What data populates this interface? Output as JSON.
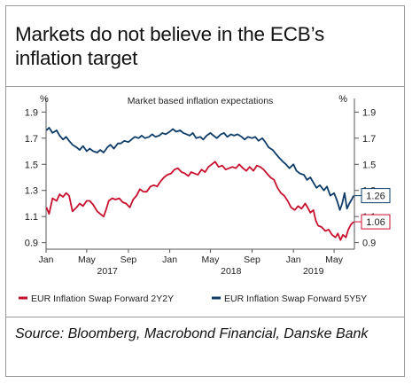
{
  "title_lines": [
    "Markets do not believe in the ECB’s",
    "inflation target"
  ],
  "source": "Source: Bloomberg, Macrobond Financial, Danske Bank",
  "chart_data": {
    "type": "line",
    "subtitle": "Market based inflation expectations",
    "left_unit": "%",
    "right_unit": "%",
    "ylim": [
      0.85,
      1.95
    ],
    "yticks": [
      0.9,
      1.1,
      1.3,
      1.5,
      1.7,
      1.9
    ],
    "ytick_labels": [
      "0.9",
      "1.1",
      "1.3",
      "1.5",
      "1.7",
      "1.9"
    ],
    "x_start": "2017-01-01",
    "x_end": "2019-06-30",
    "month_ticks": [
      {
        "date": "2017-01-01",
        "label": "Jan"
      },
      {
        "date": "2017-05-01",
        "label": "May"
      },
      {
        "date": "2017-09-01",
        "label": "Sep"
      },
      {
        "date": "2018-01-01",
        "label": "Jan"
      },
      {
        "date": "2018-05-01",
        "label": "May"
      },
      {
        "date": "2018-09-01",
        "label": "Sep"
      },
      {
        "date": "2019-01-01",
        "label": "Jan"
      },
      {
        "date": "2019-05-01",
        "label": "May"
      }
    ],
    "year_labels": [
      {
        "date": "2017-07-01",
        "label": "2017"
      },
      {
        "date": "2018-07-01",
        "label": "2018"
      },
      {
        "date": "2019-03-01",
        "label": "2019"
      }
    ],
    "series": [
      {
        "name": "EUR Inflation Swap Forward 2Y2Y",
        "color": "#c8102e",
        "end_label": "1.06",
        "points": [
          [
            "2017-01-02",
            1.17
          ],
          [
            "2017-01-10",
            1.12
          ],
          [
            "2017-01-20",
            1.24
          ],
          [
            "2017-02-01",
            1.22
          ],
          [
            "2017-02-10",
            1.27
          ],
          [
            "2017-02-20",
            1.25
          ],
          [
            "2017-03-01",
            1.28
          ],
          [
            "2017-03-10",
            1.26
          ],
          [
            "2017-03-20",
            1.14
          ],
          [
            "2017-04-01",
            1.17
          ],
          [
            "2017-04-10",
            1.2
          ],
          [
            "2017-04-20",
            1.18
          ],
          [
            "2017-05-01",
            1.22
          ],
          [
            "2017-05-10",
            1.22
          ],
          [
            "2017-05-20",
            1.19
          ],
          [
            "2017-06-01",
            1.14
          ],
          [
            "2017-06-10",
            1.12
          ],
          [
            "2017-06-20",
            1.1
          ],
          [
            "2017-06-28",
            1.16
          ],
          [
            "2017-07-05",
            1.22
          ],
          [
            "2017-07-15",
            1.24
          ],
          [
            "2017-07-25",
            1.23
          ],
          [
            "2017-08-05",
            1.24
          ],
          [
            "2017-08-15",
            1.21
          ],
          [
            "2017-08-25",
            1.2
          ],
          [
            "2017-09-05",
            1.17
          ],
          [
            "2017-09-15",
            1.23
          ],
          [
            "2017-09-25",
            1.26
          ],
          [
            "2017-10-05",
            1.31
          ],
          [
            "2017-10-15",
            1.29
          ],
          [
            "2017-10-25",
            1.29
          ],
          [
            "2017-11-05",
            1.33
          ],
          [
            "2017-11-15",
            1.34
          ],
          [
            "2017-11-25",
            1.33
          ],
          [
            "2017-12-05",
            1.37
          ],
          [
            "2017-12-15",
            1.4
          ],
          [
            "2017-12-25",
            1.42
          ],
          [
            "2018-01-05",
            1.43
          ],
          [
            "2018-01-15",
            1.46
          ],
          [
            "2018-01-25",
            1.47
          ],
          [
            "2018-02-05",
            1.44
          ],
          [
            "2018-02-15",
            1.43
          ],
          [
            "2018-02-25",
            1.41
          ],
          [
            "2018-03-05",
            1.44
          ],
          [
            "2018-03-15",
            1.43
          ],
          [
            "2018-03-25",
            1.42
          ],
          [
            "2018-04-05",
            1.46
          ],
          [
            "2018-04-15",
            1.44
          ],
          [
            "2018-04-25",
            1.48
          ],
          [
            "2018-05-05",
            1.5
          ],
          [
            "2018-05-15",
            1.52
          ],
          [
            "2018-05-25",
            1.48
          ],
          [
            "2018-06-05",
            1.49
          ],
          [
            "2018-06-15",
            1.46
          ],
          [
            "2018-06-25",
            1.47
          ],
          [
            "2018-07-05",
            1.48
          ],
          [
            "2018-07-15",
            1.47
          ],
          [
            "2018-07-25",
            1.5
          ],
          [
            "2018-08-05",
            1.47
          ],
          [
            "2018-08-15",
            1.45
          ],
          [
            "2018-08-25",
            1.48
          ],
          [
            "2018-09-05",
            1.45
          ],
          [
            "2018-09-15",
            1.49
          ],
          [
            "2018-09-25",
            1.48
          ],
          [
            "2018-10-05",
            1.46
          ],
          [
            "2018-10-15",
            1.43
          ],
          [
            "2018-10-25",
            1.4
          ],
          [
            "2018-11-05",
            1.38
          ],
          [
            "2018-11-15",
            1.32
          ],
          [
            "2018-11-25",
            1.28
          ],
          [
            "2018-12-05",
            1.26
          ],
          [
            "2018-12-15",
            1.22
          ],
          [
            "2018-12-25",
            1.17
          ],
          [
            "2019-01-05",
            1.15
          ],
          [
            "2019-01-15",
            1.18
          ],
          [
            "2019-01-25",
            1.16
          ],
          [
            "2019-02-05",
            1.2
          ],
          [
            "2019-02-12",
            1.17
          ],
          [
            "2019-02-20",
            1.13
          ],
          [
            "2019-03-01",
            1.15
          ],
          [
            "2019-03-08",
            1.07
          ],
          [
            "2019-03-15",
            1.03
          ],
          [
            "2019-03-25",
            1.02
          ],
          [
            "2019-04-05",
            0.99
          ],
          [
            "2019-04-15",
            1.0
          ],
          [
            "2019-04-25",
            0.96
          ],
          [
            "2019-05-05",
            0.94
          ],
          [
            "2019-05-12",
            0.97
          ],
          [
            "2019-05-20",
            0.92
          ],
          [
            "2019-05-27",
            0.96
          ],
          [
            "2019-06-05",
            0.94
          ],
          [
            "2019-06-12",
            1.0
          ],
          [
            "2019-06-20",
            1.04
          ],
          [
            "2019-06-28",
            1.06
          ]
        ]
      },
      {
        "name": "EUR Inflation Swap Forward 5Y5Y",
        "color": "#0e3c68",
        "end_label": "1.26",
        "points": [
          [
            "2017-01-02",
            1.76
          ],
          [
            "2017-01-10",
            1.78
          ],
          [
            "2017-01-20",
            1.74
          ],
          [
            "2017-02-01",
            1.76
          ],
          [
            "2017-02-10",
            1.72
          ],
          [
            "2017-02-20",
            1.69
          ],
          [
            "2017-03-01",
            1.71
          ],
          [
            "2017-03-10",
            1.68
          ],
          [
            "2017-03-20",
            1.65
          ],
          [
            "2017-04-01",
            1.63
          ],
          [
            "2017-04-10",
            1.61
          ],
          [
            "2017-04-20",
            1.64
          ],
          [
            "2017-05-01",
            1.6
          ],
          [
            "2017-05-10",
            1.62
          ],
          [
            "2017-05-20",
            1.6
          ],
          [
            "2017-06-01",
            1.59
          ],
          [
            "2017-06-10",
            1.61
          ],
          [
            "2017-06-20",
            1.59
          ],
          [
            "2017-07-01",
            1.63
          ],
          [
            "2017-07-10",
            1.65
          ],
          [
            "2017-07-20",
            1.62
          ],
          [
            "2017-08-01",
            1.66
          ],
          [
            "2017-08-10",
            1.66
          ],
          [
            "2017-08-20",
            1.68
          ],
          [
            "2017-09-01",
            1.67
          ],
          [
            "2017-09-10",
            1.69
          ],
          [
            "2017-09-20",
            1.71
          ],
          [
            "2017-10-01",
            1.7
          ],
          [
            "2017-10-10",
            1.72
          ],
          [
            "2017-10-20",
            1.7
          ],
          [
            "2017-11-01",
            1.71
          ],
          [
            "2017-11-10",
            1.73
          ],
          [
            "2017-11-20",
            1.71
          ],
          [
            "2017-12-01",
            1.72
          ],
          [
            "2017-12-10",
            1.74
          ],
          [
            "2017-12-20",
            1.73
          ],
          [
            "2018-01-01",
            1.75
          ],
          [
            "2018-01-10",
            1.77
          ],
          [
            "2018-01-20",
            1.75
          ],
          [
            "2018-02-01",
            1.76
          ],
          [
            "2018-02-10",
            1.74
          ],
          [
            "2018-02-20",
            1.73
          ],
          [
            "2018-03-01",
            1.72
          ],
          [
            "2018-03-10",
            1.74
          ],
          [
            "2018-03-20",
            1.7
          ],
          [
            "2018-04-01",
            1.71
          ],
          [
            "2018-04-10",
            1.69
          ],
          [
            "2018-04-20",
            1.72
          ],
          [
            "2018-05-01",
            1.74
          ],
          [
            "2018-05-10",
            1.72
          ],
          [
            "2018-05-20",
            1.7
          ],
          [
            "2018-06-01",
            1.73
          ],
          [
            "2018-06-10",
            1.74
          ],
          [
            "2018-06-20",
            1.71
          ],
          [
            "2018-07-01",
            1.73
          ],
          [
            "2018-07-10",
            1.72
          ],
          [
            "2018-07-20",
            1.73
          ],
          [
            "2018-08-01",
            1.71
          ],
          [
            "2018-08-10",
            1.69
          ],
          [
            "2018-08-20",
            1.71
          ],
          [
            "2018-09-01",
            1.7
          ],
          [
            "2018-09-10",
            1.71
          ],
          [
            "2018-09-20",
            1.68
          ],
          [
            "2018-10-01",
            1.7
          ],
          [
            "2018-10-10",
            1.67
          ],
          [
            "2018-10-20",
            1.63
          ],
          [
            "2018-11-01",
            1.61
          ],
          [
            "2018-11-10",
            1.58
          ],
          [
            "2018-11-20",
            1.55
          ],
          [
            "2018-12-01",
            1.52
          ],
          [
            "2018-12-10",
            1.5
          ],
          [
            "2018-12-20",
            1.47
          ],
          [
            "2019-01-01",
            1.5
          ],
          [
            "2019-01-10",
            1.45
          ],
          [
            "2019-01-20",
            1.43
          ],
          [
            "2019-02-01",
            1.42
          ],
          [
            "2019-02-10",
            1.38
          ],
          [
            "2019-02-20",
            1.4
          ],
          [
            "2019-03-01",
            1.36
          ],
          [
            "2019-03-10",
            1.32
          ],
          [
            "2019-03-20",
            1.34
          ],
          [
            "2019-04-01",
            1.3
          ],
          [
            "2019-04-10",
            1.33
          ],
          [
            "2019-04-20",
            1.26
          ],
          [
            "2019-05-01",
            1.28
          ],
          [
            "2019-05-10",
            1.22
          ],
          [
            "2019-05-18",
            1.15
          ],
          [
            "2019-05-25",
            1.2
          ],
          [
            "2019-06-01",
            1.28
          ],
          [
            "2019-06-08",
            1.16
          ],
          [
            "2019-06-15",
            1.2
          ],
          [
            "2019-06-22",
            1.23
          ],
          [
            "2019-06-28",
            1.26
          ]
        ]
      }
    ]
  }
}
